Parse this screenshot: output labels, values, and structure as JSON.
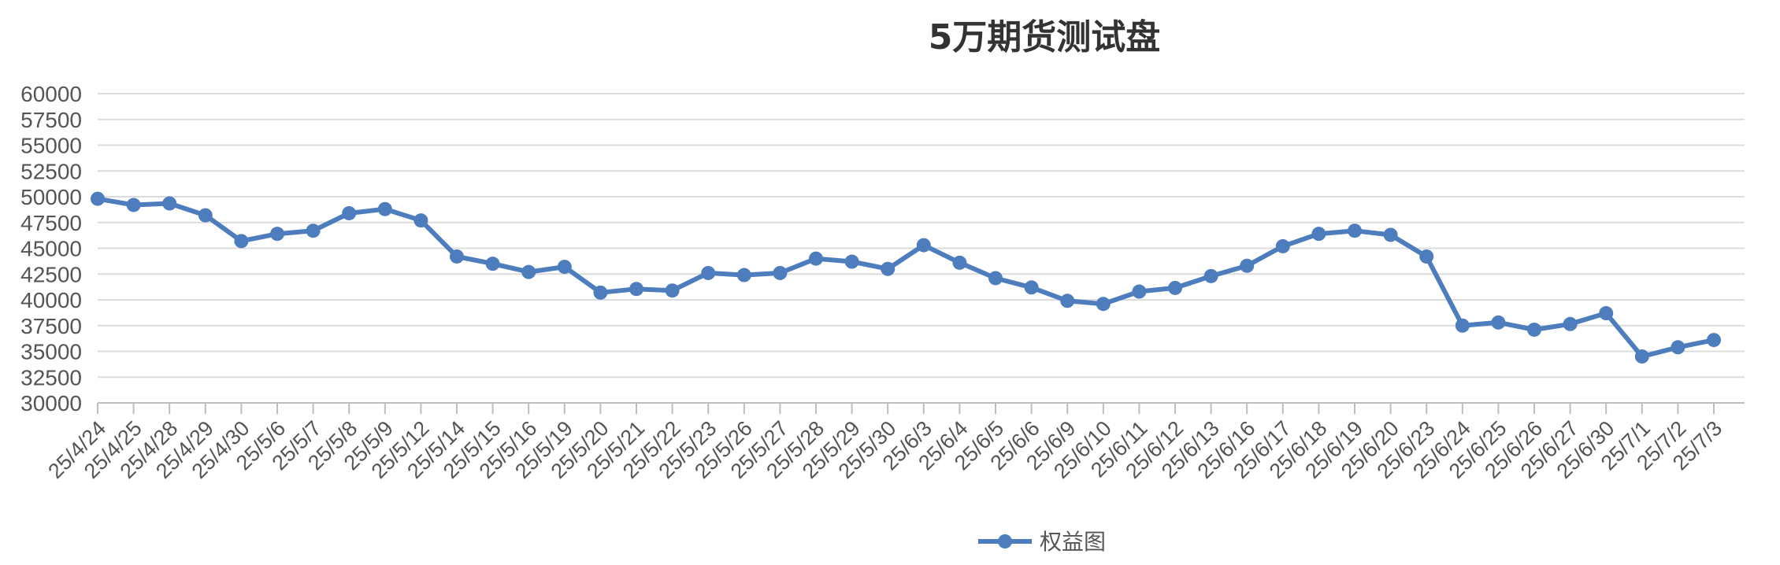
{
  "chart_data": {
    "type": "line",
    "title": "5万期货测试盘",
    "xlabel": "",
    "ylabel": "",
    "ylim": [
      30000,
      60000
    ],
    "ytick_step": 2500,
    "grid": true,
    "legend_position": "bottom",
    "categories": [
      "25/4/24",
      "25/4/25",
      "25/4/28",
      "25/4/29",
      "25/4/30",
      "25/5/6",
      "25/5/7",
      "25/5/8",
      "25/5/9",
      "25/5/12",
      "25/5/14",
      "25/5/15",
      "25/5/16",
      "25/5/19",
      "25/5/20",
      "25/5/21",
      "25/5/22",
      "25/5/23",
      "25/5/26",
      "25/5/27",
      "25/5/28",
      "25/5/29",
      "25/5/30",
      "25/6/3",
      "25/6/4",
      "25/6/5",
      "25/6/6",
      "25/6/9",
      "25/6/10",
      "25/6/11",
      "25/6/12",
      "25/6/13",
      "25/6/16",
      "25/6/17",
      "25/6/18",
      "25/6/19",
      "25/6/20",
      "25/6/23",
      "25/6/24",
      "25/6/25",
      "25/6/26",
      "25/6/27",
      "25/6/30",
      "25/7/1",
      "25/7/2",
      "25/7/3"
    ],
    "series": [
      {
        "name": "权益图",
        "color": "#4e7dbe",
        "values": [
          49800,
          49200,
          49350,
          48200,
          45700,
          46400,
          46700,
          48400,
          48800,
          47700,
          44200,
          43500,
          42700,
          43200,
          40700,
          41050,
          40900,
          42600,
          42400,
          42600,
          44000,
          43700,
          43000,
          45300,
          43600,
          42100,
          41200,
          39900,
          39600,
          40800,
          41150,
          42300,
          43300,
          45200,
          46400,
          46700,
          46300,
          44200,
          37500,
          37800,
          37100,
          37650,
          38700,
          34500,
          35400,
          36100
        ]
      }
    ]
  }
}
